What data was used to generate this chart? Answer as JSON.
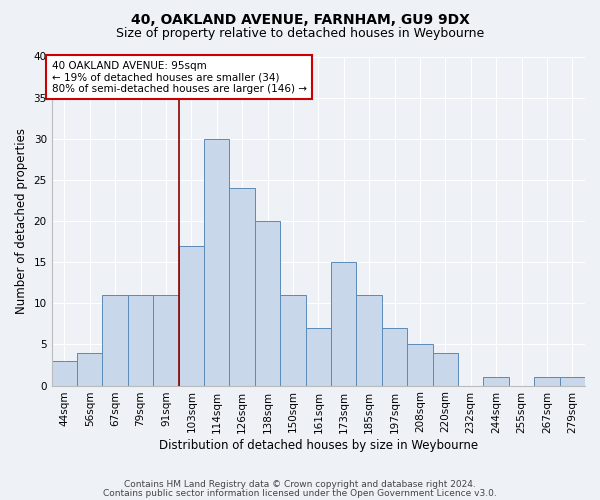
{
  "title": "40, OAKLAND AVENUE, FARNHAM, GU9 9DX",
  "subtitle": "Size of property relative to detached houses in Weybourne",
  "xlabel": "Distribution of detached houses by size in Weybourne",
  "ylabel": "Number of detached properties",
  "bar_labels": [
    "44sqm",
    "56sqm",
    "67sqm",
    "79sqm",
    "91sqm",
    "103sqm",
    "114sqm",
    "126sqm",
    "138sqm",
    "150sqm",
    "161sqm",
    "173sqm",
    "185sqm",
    "197sqm",
    "208sqm",
    "220sqm",
    "232sqm",
    "244sqm",
    "255sqm",
    "267sqm",
    "279sqm"
  ],
  "bar_values": [
    3,
    4,
    11,
    11,
    11,
    17,
    30,
    24,
    20,
    11,
    7,
    15,
    11,
    7,
    5,
    4,
    0,
    1,
    0,
    1,
    1
  ],
  "bar_color": "#c8d8ea",
  "bar_edge_color": "#5b8ab8",
  "background_color": "#eef2f7",
  "grid_color": "#ffffff",
  "vline_color": "#8b0000",
  "vline_x_index": 4.5,
  "annotation_text": "40 OAKLAND AVENUE: 95sqm\n← 19% of detached houses are smaller (34)\n80% of semi-detached houses are larger (146) →",
  "annotation_box_facecolor": "#ffffff",
  "annotation_box_edgecolor": "#cc0000",
  "ylim": [
    0,
    40
  ],
  "yticks": [
    0,
    5,
    10,
    15,
    20,
    25,
    30,
    35,
    40
  ],
  "footer_line1": "Contains HM Land Registry data © Crown copyright and database right 2024.",
  "footer_line2": "Contains public sector information licensed under the Open Government Licence v3.0.",
  "title_fontsize": 10,
  "subtitle_fontsize": 9,
  "ylabel_fontsize": 8.5,
  "xlabel_fontsize": 8.5,
  "tick_fontsize": 7.5,
  "annotation_fontsize": 7.5,
  "footer_fontsize": 6.5
}
